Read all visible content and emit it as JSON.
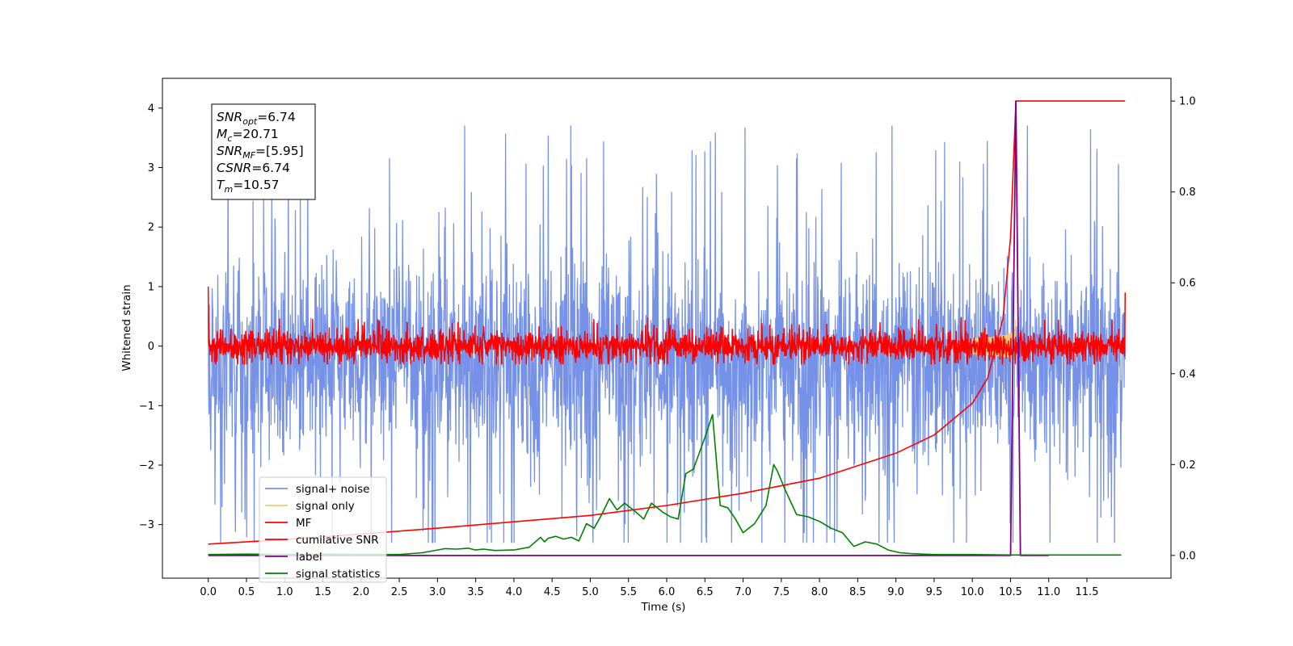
{
  "chart_data": {
    "type": "line",
    "xlabel": "Time (s)",
    "ylabel": "Whitened strain",
    "xlim": [
      -0.6,
      12.6
    ],
    "ylim_left": [
      -3.9,
      4.5
    ],
    "ylim_right": [
      -0.05,
      1.05
    ],
    "x_ticks": [
      0.0,
      0.5,
      1.0,
      1.5,
      2.0,
      2.5,
      3.0,
      3.5,
      4.0,
      4.5,
      5.0,
      5.5,
      6.0,
      6.5,
      7.0,
      7.5,
      8.0,
      8.5,
      9.0,
      9.5,
      10.0,
      10.5,
      11.0,
      11.5
    ],
    "x_tick_labels": [
      "0.0",
      "0.5",
      "1.0",
      "1.5",
      "2.0",
      "2.5",
      "3.0",
      "3.5",
      "4.0",
      "4.5",
      "5.0",
      "5.5",
      "6.0",
      "6.5",
      "7.0",
      "7.5",
      "8.0",
      "8.5",
      "9.0",
      "9.5",
      "10.0",
      "10.5",
      "11.0",
      "11.5"
    ],
    "y_left_ticks": [
      -3,
      -2,
      -1,
      0,
      1,
      2,
      3,
      4
    ],
    "y_left_tick_labels": [
      "−3",
      "−2",
      "−1",
      "0",
      "1",
      "2",
      "3",
      "4"
    ],
    "y_right_ticks": [
      0.0,
      0.2,
      0.4,
      0.6,
      0.8,
      1.0
    ],
    "y_right_tick_labels": [
      "0.0",
      "0.2",
      "0.4",
      "0.6",
      "0.8",
      "1.0"
    ],
    "grid": false,
    "legend_position": "lower-left",
    "annotation": {
      "lines": [
        {
          "base": "SNR",
          "sub": "opt",
          "rest": "=6.74"
        },
        {
          "base": "M",
          "sub": "c",
          "rest": "=20.71"
        },
        {
          "base": "SNR",
          "sub": "MF",
          "rest": "=[5.95]"
        },
        {
          "base": "CSNR",
          "sub": "",
          "rest": "=6.74"
        },
        {
          "base": "T",
          "sub": "m",
          "rest": "=10.57"
        }
      ]
    },
    "series": [
      {
        "name": "signal+ noise",
        "color": "#7692e8",
        "axis": "left",
        "kind": "noise",
        "x_range": [
          0.0,
          12.0
        ],
        "center": -0.25,
        "spread": 0.85,
        "approx_min": -3.3,
        "approx_max": 3.7
      },
      {
        "name": "signal only",
        "color": "#f5c77a",
        "axis": "left",
        "kind": "chirp",
        "x_range": [
          10.0,
          10.57
        ],
        "peak_time": 10.57,
        "peak_amplitude": 0.45
      },
      {
        "name": "MF",
        "color": "#ff0000",
        "axis": "left",
        "kind": "noise",
        "x_range": [
          0.0,
          12.0
        ],
        "center": 0.0,
        "spread": 0.12,
        "approx_min": -0.3,
        "approx_max": 0.6,
        "edge_values": {
          "start": 1.0,
          "end": 0.9
        }
      },
      {
        "name": "cumilative SNR",
        "color": "#ff0000",
        "axis": "right",
        "x": [
          0.0,
          1.0,
          2.0,
          3.0,
          4.0,
          5.0,
          6.0,
          7.0,
          8.0,
          9.0,
          9.5,
          10.0,
          10.2,
          10.4,
          10.5,
          10.57,
          12.0
        ],
        "y": [
          0.025,
          0.035,
          0.047,
          0.06,
          0.074,
          0.088,
          0.11,
          0.137,
          0.17,
          0.225,
          0.265,
          0.335,
          0.39,
          0.52,
          0.7,
          1.0,
          1.0
        ]
      },
      {
        "name": "label",
        "color": "#800080",
        "axis": "right",
        "x": [
          0.0,
          10.49,
          10.5,
          10.57,
          10.63,
          10.64,
          11.0
        ],
        "y": [
          0.0,
          0.0,
          0.0,
          1.0,
          0.0,
          0.0,
          0.0
        ]
      },
      {
        "name": "signal statistics",
        "color": "#008000",
        "axis": "right",
        "x": [
          0.0,
          0.5,
          1.0,
          1.5,
          2.0,
          2.5,
          2.8,
          3.0,
          3.1,
          3.25,
          3.4,
          3.5,
          3.6,
          3.75,
          4.0,
          4.2,
          4.35,
          4.4,
          4.45,
          4.55,
          4.65,
          4.75,
          4.85,
          4.95,
          5.05,
          5.15,
          5.25,
          5.35,
          5.45,
          5.6,
          5.7,
          5.8,
          5.95,
          6.05,
          6.15,
          6.25,
          6.35,
          6.5,
          6.6,
          6.7,
          6.8,
          6.9,
          7.0,
          7.15,
          7.3,
          7.4,
          7.45,
          7.55,
          7.7,
          7.85,
          8.0,
          8.15,
          8.3,
          8.45,
          8.6,
          8.75,
          8.9,
          9.05,
          9.2,
          9.35,
          9.5,
          10.0,
          10.5,
          11.0,
          11.5,
          11.95
        ],
        "y": [
          0.002,
          0.003,
          0.002,
          0.003,
          0.002,
          0.002,
          0.006,
          0.012,
          0.015,
          0.014,
          0.016,
          0.012,
          0.014,
          0.011,
          0.012,
          0.018,
          0.04,
          0.03,
          0.038,
          0.042,
          0.036,
          0.04,
          0.032,
          0.07,
          0.06,
          0.09,
          0.125,
          0.1,
          0.115,
          0.095,
          0.08,
          0.115,
          0.095,
          0.085,
          0.08,
          0.18,
          0.19,
          0.26,
          0.31,
          0.11,
          0.105,
          0.08,
          0.05,
          0.07,
          0.11,
          0.2,
          0.185,
          0.145,
          0.09,
          0.085,
          0.075,
          0.06,
          0.05,
          0.02,
          0.03,
          0.025,
          0.012,
          0.006,
          0.004,
          0.003,
          0.002,
          0.002,
          0.001,
          0.001,
          0.001,
          0.001
        ]
      }
    ]
  }
}
